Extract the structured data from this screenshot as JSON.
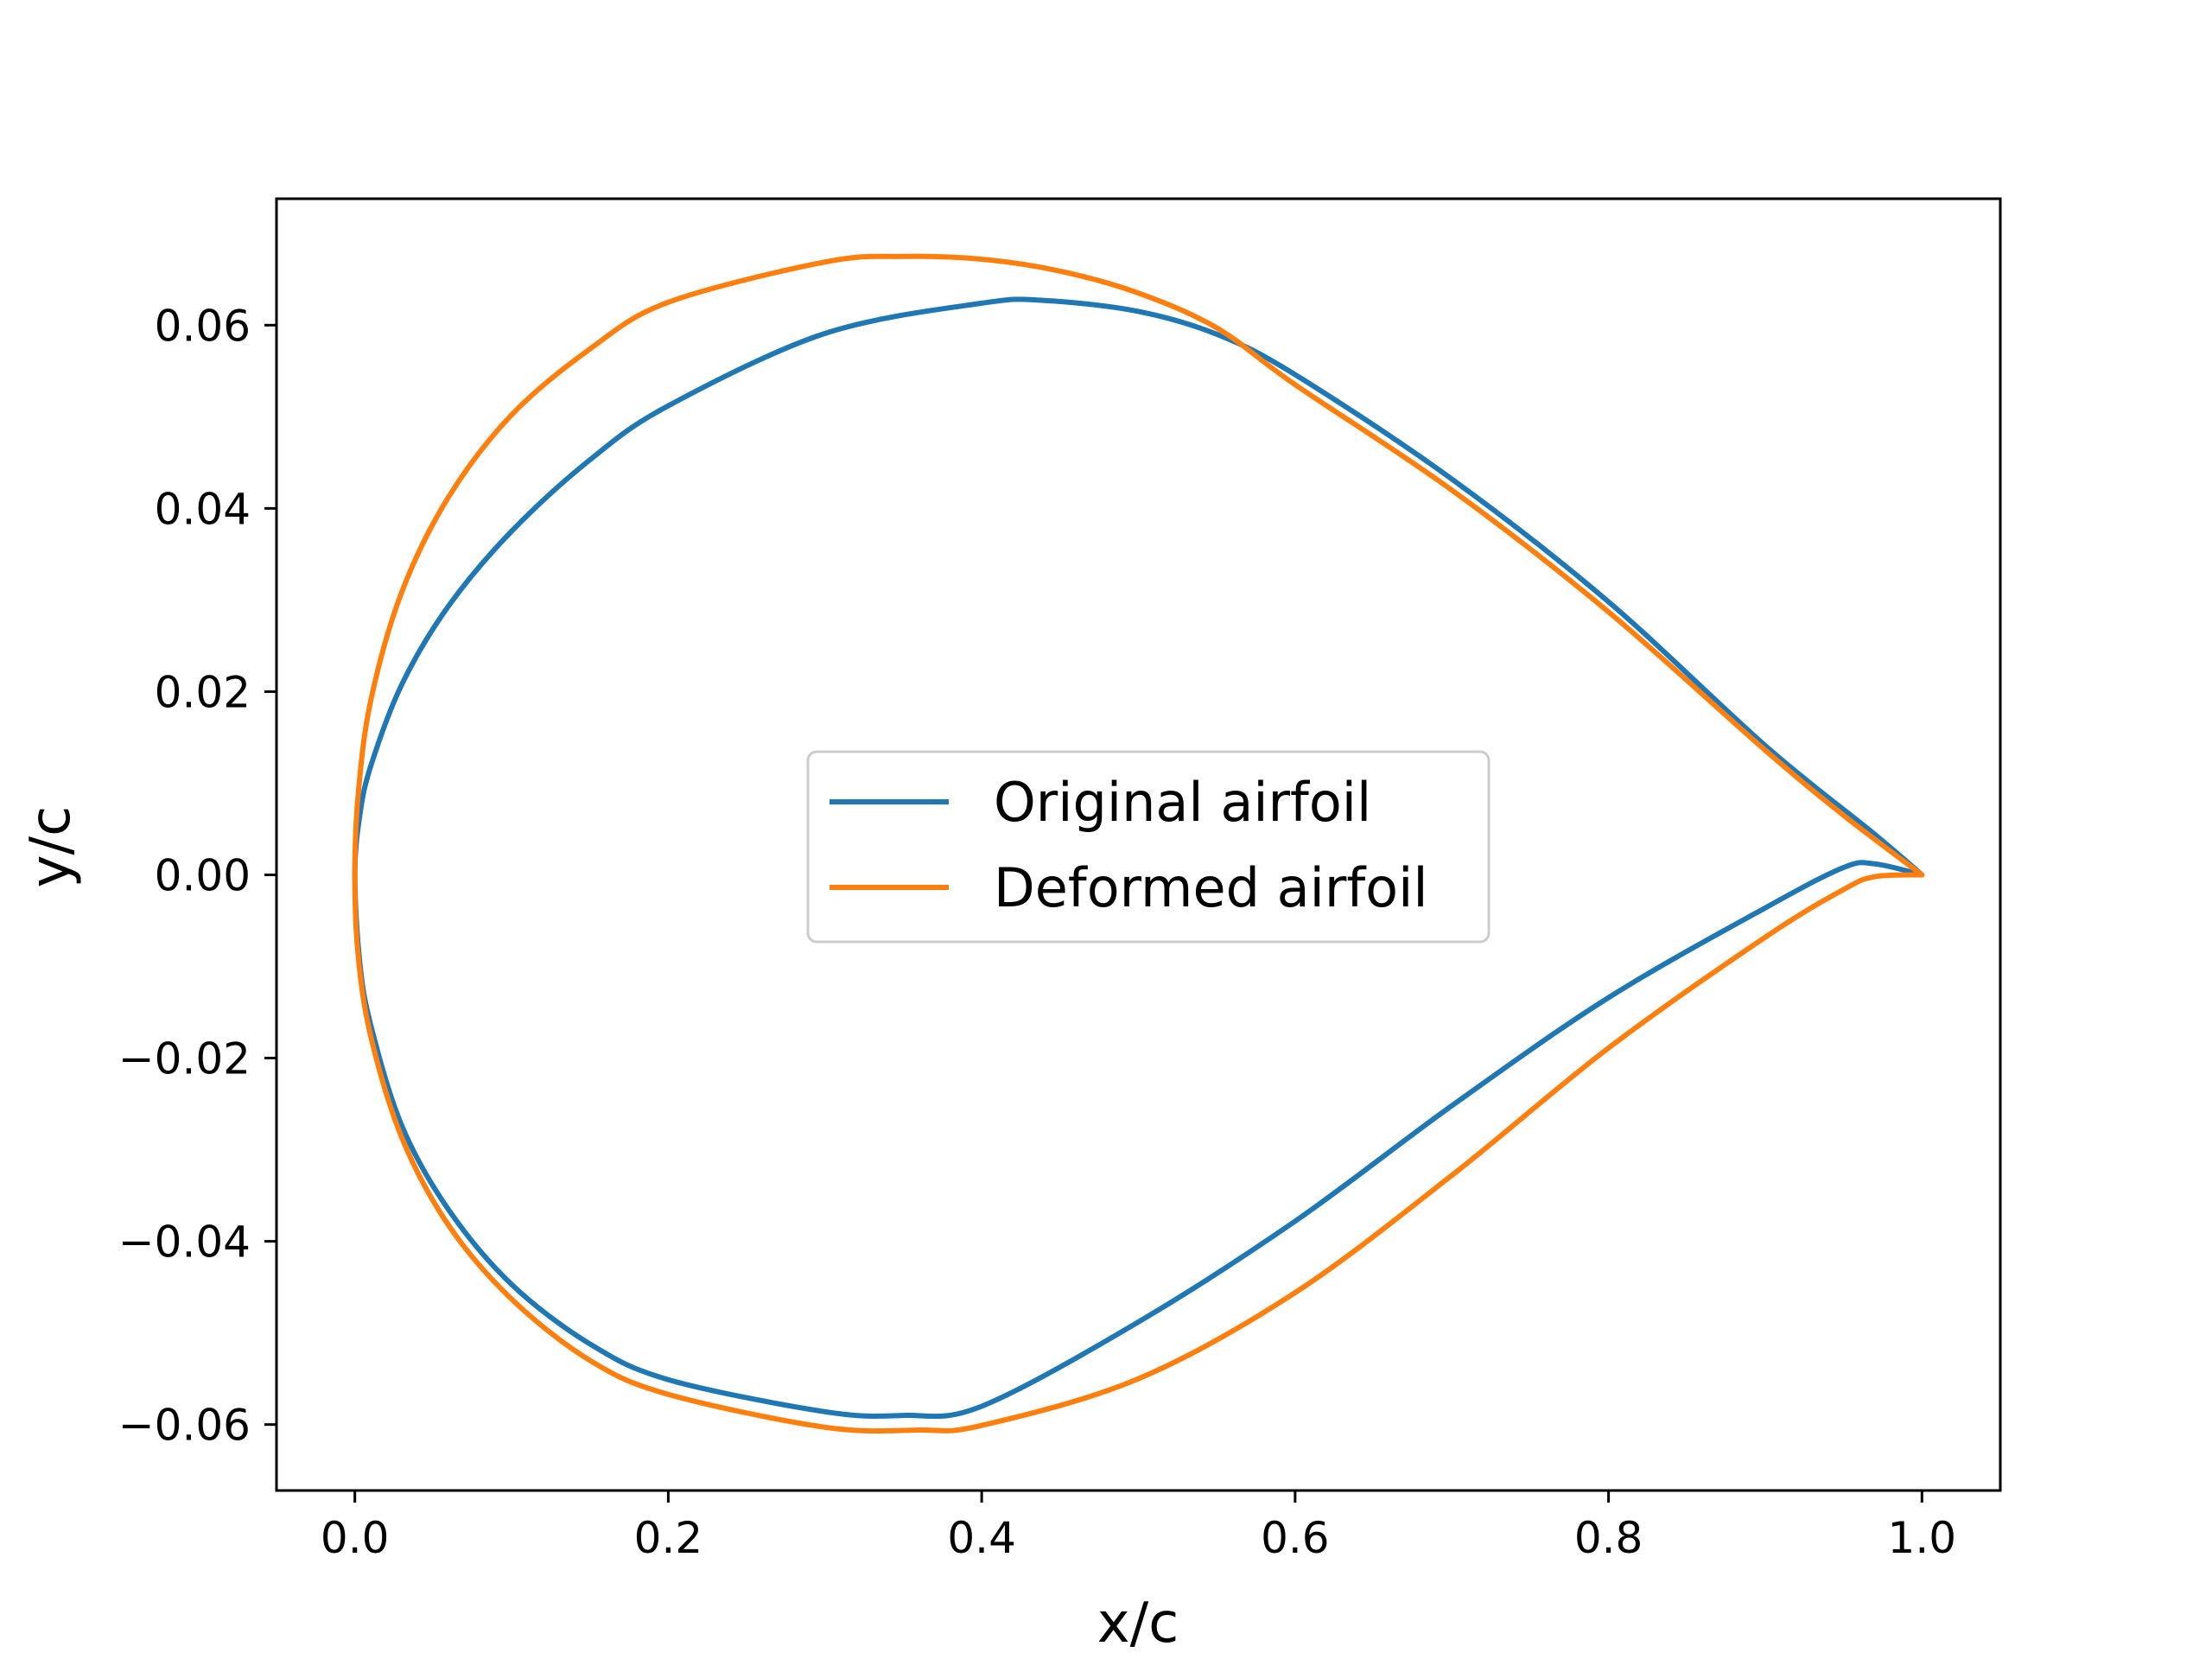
{
  "chart_data": {
    "type": "line",
    "title": "",
    "xlabel": "x/c",
    "ylabel": "y/c",
    "xlim": [
      -0.05,
      1.05
    ],
    "ylim": [
      -0.0672,
      0.0738
    ],
    "xticks": [
      0.0,
      0.2,
      0.4,
      0.6,
      0.8,
      1.0
    ],
    "xtick_labels": [
      "0.0",
      "0.2",
      "0.4",
      "0.6",
      "0.8",
      "1.0"
    ],
    "yticks": [
      -0.06,
      -0.04,
      -0.02,
      0.0,
      0.02,
      0.04,
      0.06
    ],
    "ytick_labels": [
      "−0.06",
      "−0.04",
      "−0.02",
      "0.00",
      "0.02",
      "0.04",
      "0.06"
    ],
    "grid": false,
    "legend_position": "center",
    "series": [
      {
        "name": "Original airfoil",
        "color": "#1f77b4",
        "x": [
          1.0,
          0.97,
          0.9,
          0.8,
          0.7,
          0.6,
          0.55,
          0.5,
          0.44,
          0.4,
          0.3,
          0.2,
          0.15,
          0.1,
          0.06,
          0.03,
          0.01,
          0.003,
          0.0,
          0.003,
          0.01,
          0.03,
          0.06,
          0.1,
          0.15,
          0.2,
          0.3,
          0.35,
          0.4,
          0.5,
          0.6,
          0.7,
          0.8,
          0.9,
          0.95,
          0.97,
          1.0
        ],
        "y": [
          0.0,
          0.0044,
          0.0141,
          0.0298,
          0.0432,
          0.0546,
          0.059,
          0.0615,
          0.0627,
          0.0624,
          0.0591,
          0.0512,
          0.0453,
          0.0375,
          0.0294,
          0.0208,
          0.0118,
          0.0063,
          0.0,
          -0.0093,
          -0.0163,
          -0.0274,
          -0.0366,
          -0.0447,
          -0.0512,
          -0.0551,
          -0.0586,
          -0.059,
          -0.058,
          -0.0488,
          -0.0378,
          -0.0252,
          -0.0134,
          -0.0036,
          0.0008,
          0.0012,
          0.0
        ]
      },
      {
        "name": "Deformed airfoil",
        "color": "#ff7f0e",
        "x": [
          1.0,
          0.95,
          0.9,
          0.8,
          0.7,
          0.6,
          0.55,
          0.5,
          0.45,
          0.4,
          0.35,
          0.3,
          0.2,
          0.15,
          0.1,
          0.06,
          0.03,
          0.01,
          0.002,
          0.0,
          0.002,
          0.01,
          0.03,
          0.06,
          0.1,
          0.15,
          0.2,
          0.3,
          0.36,
          0.4,
          0.5,
          0.6,
          0.7,
          0.8,
          0.9,
          0.95,
          0.97,
          1.0
        ],
        "y": [
          0.0,
          0.0065,
          0.0136,
          0.0287,
          0.042,
          0.0535,
          0.0597,
          0.0635,
          0.0659,
          0.0672,
          0.0675,
          0.0669,
          0.0625,
          0.0574,
          0.0502,
          0.0413,
          0.0309,
          0.0189,
          0.0085,
          0.0,
          -0.0086,
          -0.0175,
          -0.0287,
          -0.0383,
          -0.0463,
          -0.053,
          -0.0567,
          -0.0603,
          -0.0606,
          -0.0601,
          -0.055,
          -0.0456,
          -0.0328,
          -0.0189,
          -0.0068,
          -0.0016,
          -0.0002,
          0.0
        ]
      }
    ]
  }
}
